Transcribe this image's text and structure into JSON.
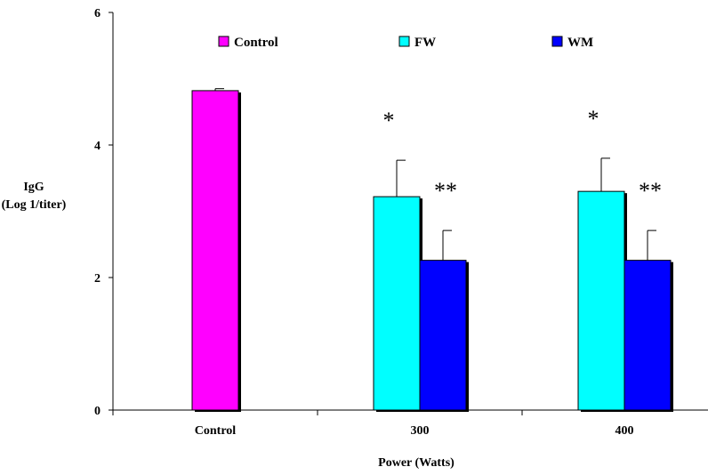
{
  "chart_data": {
    "type": "bar",
    "title": "",
    "xlabel": "Power (Watts)",
    "ylabel": [
      "IgG",
      "(Log 1/titer)"
    ],
    "categories": [
      "Control",
      "300",
      "400"
    ],
    "ylim": [
      0,
      6
    ],
    "yticks": [
      0,
      2,
      4,
      6
    ],
    "legend_position": "top",
    "grid": false,
    "series": [
      {
        "name": "Control",
        "color": "#ff00ff",
        "values": [
          4.82,
          null,
          null
        ],
        "errors": [
          0.03,
          null,
          null
        ]
      },
      {
        "name": "FW",
        "color": "#00ffff",
        "values": [
          null,
          3.22,
          3.3
        ],
        "errors": [
          null,
          0.55,
          0.5
        ]
      },
      {
        "name": "WM",
        "color": "#0000ff",
        "values": [
          null,
          2.26,
          2.26
        ],
        "errors": [
          null,
          0.45,
          0.45
        ]
      }
    ],
    "annotations": [
      {
        "text": "*",
        "category": "300",
        "series": "FW"
      },
      {
        "text": "**",
        "category": "300",
        "series": "WM"
      },
      {
        "text": "*",
        "category": "400",
        "series": "FW"
      },
      {
        "text": "**",
        "category": "400",
        "series": "WM"
      }
    ]
  }
}
